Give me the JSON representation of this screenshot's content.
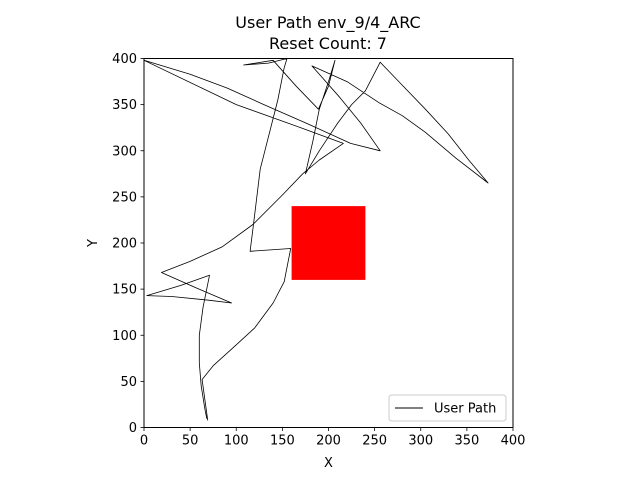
{
  "chart_data": {
    "type": "line",
    "title": "User Path env_9/4_ARC",
    "subtitle": "Reset Count: 7",
    "xlabel": "X",
    "ylabel": "Y",
    "xlim": [
      0,
      400
    ],
    "ylim": [
      0,
      400
    ],
    "x_ticks": [
      "0",
      "50",
      "100",
      "150",
      "200",
      "250",
      "300",
      "350",
      "400"
    ],
    "y_ticks": [
      "0",
      "50",
      "100",
      "150",
      "200",
      "250",
      "300",
      "350",
      "400"
    ],
    "grid": false,
    "legend": {
      "placement": "lower-right",
      "entries": [
        "User Path"
      ]
    },
    "series": [
      {
        "name": "User Path",
        "color": "#000000",
        "points": [
          [
            69,
            8
          ],
          [
            66,
            30
          ],
          [
            63,
            52
          ],
          [
            75,
            67
          ],
          [
            95,
            85
          ],
          [
            120,
            108
          ],
          [
            140,
            135
          ],
          [
            152,
            158
          ],
          [
            159,
            194
          ],
          [
            115,
            191
          ],
          [
            118,
            215
          ],
          [
            126,
            280
          ],
          [
            140,
            335
          ],
          [
            145,
            355
          ],
          [
            152,
            390
          ],
          [
            155,
            400
          ],
          [
            135,
            395
          ],
          [
            108,
            393
          ],
          [
            140,
            398
          ],
          [
            165,
            370
          ],
          [
            189,
            345
          ],
          [
            200,
            370
          ],
          [
            207,
            398
          ],
          [
            200,
            375
          ],
          [
            190,
            345
          ],
          [
            183,
            310
          ],
          [
            175,
            275
          ],
          [
            190,
            300
          ],
          [
            210,
            330
          ],
          [
            225,
            350
          ],
          [
            240,
            365
          ],
          [
            256,
            396
          ],
          [
            278,
            373
          ],
          [
            305,
            345
          ],
          [
            330,
            318
          ],
          [
            352,
            290
          ],
          [
            373,
            265
          ],
          [
            338,
            292
          ],
          [
            305,
            320
          ],
          [
            280,
            338
          ],
          [
            255,
            352
          ],
          [
            220,
            375
          ],
          [
            182,
            392
          ],
          [
            212,
            358
          ],
          [
            235,
            330
          ],
          [
            256,
            300
          ],
          [
            224,
            308
          ],
          [
            180,
            328
          ],
          [
            130,
            350
          ],
          [
            90,
            368
          ],
          [
            50,
            383
          ],
          [
            0,
            398
          ],
          [
            100,
            350
          ],
          [
            170,
            325
          ],
          [
            216,
            308
          ],
          [
            190,
            290
          ],
          [
            172,
            275
          ],
          [
            150,
            252
          ],
          [
            118,
            220
          ],
          [
            85,
            196
          ],
          [
            50,
            180
          ],
          [
            19,
            168
          ],
          [
            55,
            152
          ],
          [
            95,
            135
          ],
          [
            70,
            138
          ],
          [
            30,
            142
          ],
          [
            3,
            143
          ],
          [
            40,
            154
          ],
          [
            71,
            165
          ],
          [
            64,
            130
          ],
          [
            60,
            100
          ],
          [
            60,
            70
          ],
          [
            62,
            45
          ],
          [
            66,
            20
          ],
          [
            68,
            10
          ]
        ]
      }
    ],
    "annotations": [
      {
        "type": "rectangle",
        "label": "",
        "color": "#ff0000",
        "x": [
          160,
          240
        ],
        "y": [
          160,
          240
        ]
      }
    ]
  }
}
